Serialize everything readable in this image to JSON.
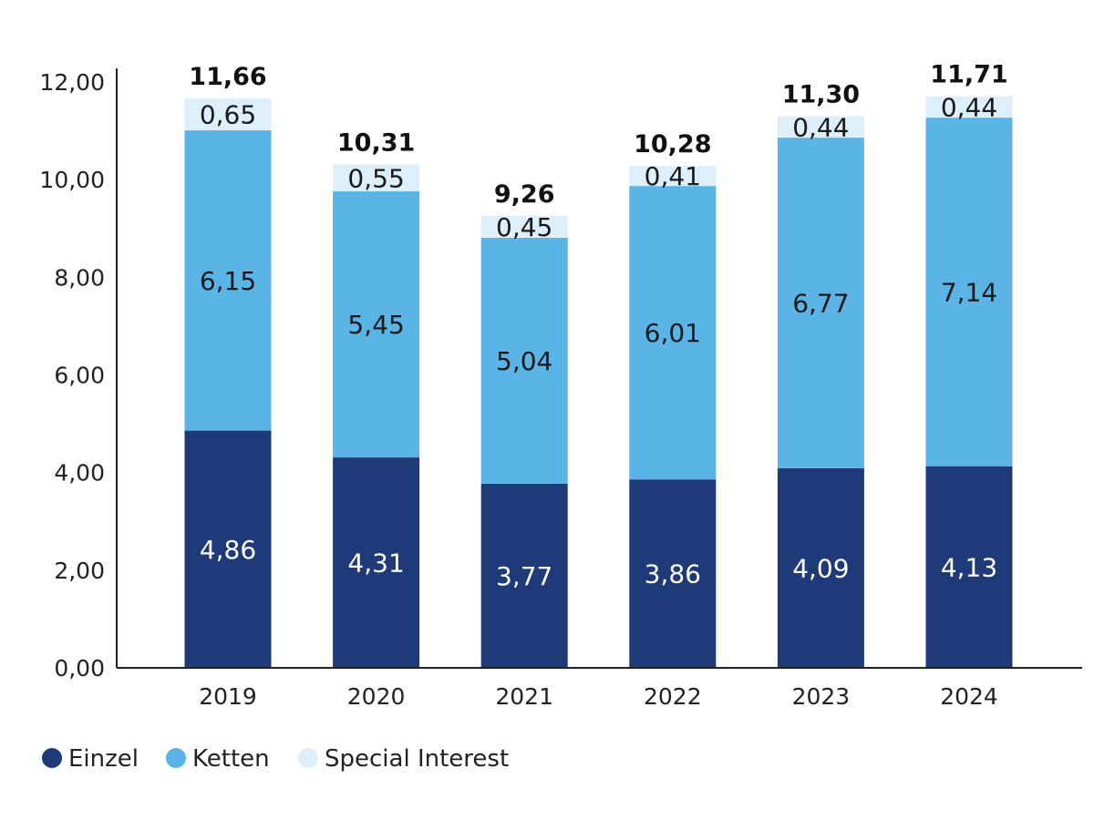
{
  "chart_data": {
    "type": "bar",
    "stacked": true,
    "categories": [
      "2019",
      "2020",
      "2021",
      "2022",
      "2023",
      "2024"
    ],
    "series": [
      {
        "name": "Einzel",
        "color": "#1E3A78",
        "label_color": "#ffffff",
        "values": [
          4.86,
          4.31,
          3.77,
          3.86,
          4.09,
          4.13
        ],
        "labels": [
          "4,86",
          "4,31",
          "3,77",
          "3,86",
          "4,09",
          "4,13"
        ]
      },
      {
        "name": "Ketten",
        "color": "#5BB4E6",
        "label_color": "#1a1a1a",
        "values": [
          6.15,
          5.45,
          5.04,
          6.01,
          6.77,
          7.14
        ],
        "labels": [
          "6,15",
          "5,45",
          "5,04",
          "6,01",
          "6,77",
          "7,14"
        ]
      },
      {
        "name": "Special Interest",
        "color": "#DDEFFB",
        "label_color": "#1a1a1a",
        "values": [
          0.65,
          0.55,
          0.45,
          0.41,
          0.44,
          0.44
        ],
        "labels": [
          "0,65",
          "0,55",
          "0,45",
          "0,41",
          "0,44",
          "0,44"
        ]
      }
    ],
    "totals": [
      11.66,
      10.31,
      9.26,
      10.28,
      11.3,
      11.71
    ],
    "total_labels": [
      "11,66",
      "10,31",
      "9,26",
      "10,28",
      "11,30",
      "11,71"
    ],
    "yticks": [
      0,
      2,
      4,
      6,
      8,
      10,
      12
    ],
    "ytick_labels": [
      "0,00",
      "2,00",
      "4,00",
      "6,00",
      "8,00",
      "10,00",
      "12,00"
    ],
    "ylim": [
      0,
      12.4
    ],
    "grid": false,
    "legend": "bottom-left"
  }
}
